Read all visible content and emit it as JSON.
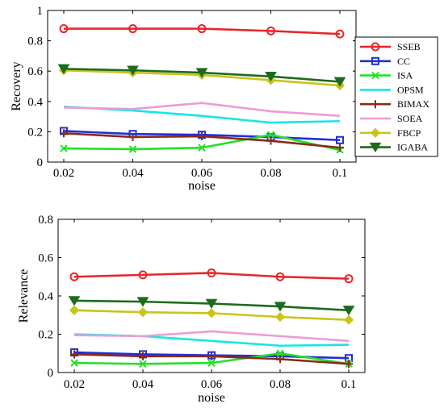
{
  "chart_data": [
    {
      "type": "line",
      "xlabel": "noise",
      "ylabel": "Recovery",
      "x": [
        0.02,
        0.04,
        0.06,
        0.08,
        0.1
      ],
      "x_tick_labels": [
        "0.02",
        "0.04",
        "0.06",
        "0.08",
        "0.1"
      ],
      "ylim": [
        0,
        1
      ],
      "y_tick_labels": [
        "0",
        "0.2",
        "0.4",
        "0.6",
        "0.8",
        "1"
      ],
      "legend_position": "right",
      "series": [
        {
          "name": "SSEB",
          "color": "#e8262a",
          "marker": "circle",
          "values": [
            0.88,
            0.88,
            0.88,
            0.865,
            0.845
          ]
        },
        {
          "name": "CC",
          "color": "#1f2fd6",
          "marker": "square",
          "values": [
            0.205,
            0.185,
            0.18,
            0.165,
            0.145
          ]
        },
        {
          "name": "ISA",
          "color": "#22e025",
          "marker": "x",
          "values": [
            0.09,
            0.085,
            0.095,
            0.18,
            0.08
          ]
        },
        {
          "name": "OPSM",
          "color": "#14e6e6",
          "marker": "none",
          "values": [
            0.365,
            0.34,
            0.305,
            0.26,
            0.27
          ]
        },
        {
          "name": "BIMAX",
          "color": "#8b2a1a",
          "marker": "plus",
          "values": [
            0.19,
            0.165,
            0.17,
            0.14,
            0.095
          ]
        },
        {
          "name": "SOEA",
          "color": "#ee9ad6",
          "marker": "none",
          "values": [
            0.36,
            0.35,
            0.39,
            0.335,
            0.305
          ]
        },
        {
          "name": "FBCP",
          "color": "#c9c41a",
          "marker": "diamond",
          "values": [
            0.605,
            0.59,
            0.575,
            0.54,
            0.505
          ]
        },
        {
          "name": "IGABA",
          "color": "#1d6a1d",
          "marker": "triangle-down",
          "values": [
            0.615,
            0.605,
            0.59,
            0.565,
            0.53
          ]
        }
      ]
    },
    {
      "type": "line",
      "xlabel": "noise",
      "ylabel": "Relevance",
      "x": [
        0.02,
        0.04,
        0.06,
        0.08,
        0.1
      ],
      "x_tick_labels": [
        "0.02",
        "0.04",
        "0.06",
        "0.08",
        "0.1"
      ],
      "ylim": [
        0,
        0.8
      ],
      "y_tick_labels": [
        "0",
        "0.2",
        "0.4",
        "0.6",
        "0.8"
      ],
      "series": [
        {
          "name": "SSEB",
          "color": "#e8262a",
          "marker": "circle",
          "values": [
            0.5,
            0.51,
            0.52,
            0.5,
            0.49
          ]
        },
        {
          "name": "CC",
          "color": "#1f2fd6",
          "marker": "square",
          "values": [
            0.105,
            0.095,
            0.09,
            0.085,
            0.075
          ]
        },
        {
          "name": "ISA",
          "color": "#22e025",
          "marker": "x",
          "values": [
            0.05,
            0.045,
            0.05,
            0.1,
            0.045
          ]
        },
        {
          "name": "OPSM",
          "color": "#14e6e6",
          "marker": "none",
          "values": [
            0.2,
            0.19,
            0.165,
            0.14,
            0.145
          ]
        },
        {
          "name": "BIMAX",
          "color": "#8b2a1a",
          "marker": "plus",
          "values": [
            0.095,
            0.085,
            0.085,
            0.07,
            0.045
          ]
        },
        {
          "name": "SOEA",
          "color": "#ee9ad6",
          "marker": "none",
          "values": [
            0.195,
            0.19,
            0.215,
            0.19,
            0.165
          ]
        },
        {
          "name": "FBCP",
          "color": "#c9c41a",
          "marker": "diamond",
          "values": [
            0.325,
            0.315,
            0.31,
            0.29,
            0.275
          ]
        },
        {
          "name": "IGABA",
          "color": "#1d6a1d",
          "marker": "triangle-down",
          "values": [
            0.375,
            0.37,
            0.36,
            0.345,
            0.325
          ]
        }
      ]
    }
  ]
}
